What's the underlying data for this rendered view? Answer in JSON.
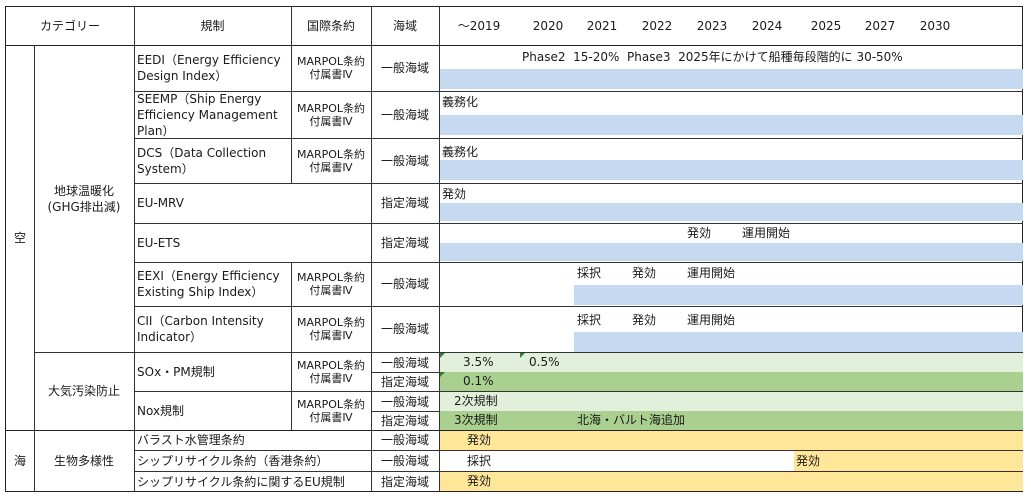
{
  "header": {
    "category": "カテゴリー",
    "regulation": "規制",
    "treaty": "国際条約",
    "sea_area": "海域",
    "years": [
      "～2019",
      "2020",
      "2021",
      "2022",
      "2023",
      "2024",
      "2025",
      "2027",
      "2030"
    ]
  },
  "categories": {
    "sky": "空",
    "sea": "海",
    "ghg": "地球温暖化\n(GHG排出減)",
    "air_pollution": "大気汚染防止",
    "biodiversity": "生物多様性"
  },
  "rows": [
    {
      "regulation": "EEDI（Energy Efficiency\nDesign Index）",
      "treaty": "MARPOL条約\n付属書Ⅳ",
      "area": "一般海域",
      "timeline": "Phase2  15-20%  Phase3  2025年にかけて船種毎段階的に 30-50%"
    },
    {
      "regulation": "SEEMP（Ship Energy\nEfficiency Management\nPlan）",
      "treaty": "MARPOL条約\n付属書Ⅳ",
      "area": "一般海域",
      "timeline": "義務化"
    },
    {
      "regulation": "DCS（Data Collection\nSystem）",
      "treaty": "MARPOL条約\n付属書Ⅳ",
      "area": "一般海域",
      "timeline": "義務化"
    },
    {
      "regulation": "EU-MRV",
      "treaty": "",
      "area": "指定海域",
      "timeline": "発効"
    },
    {
      "regulation": "EU-ETS",
      "treaty": "",
      "area": "指定海域",
      "timeline_a": "発効",
      "timeline_b": "運用開始"
    },
    {
      "regulation": "EEXI（Energy Efficiency\nExisting Ship Index）",
      "treaty": "MARPOL条約\n付属書Ⅳ",
      "area": "一般海域",
      "timeline_a": "採択",
      "timeline_b": "発効",
      "timeline_c": "運用開始"
    },
    {
      "regulation": "CII（Carbon Intensity\nIndicator）",
      "treaty": "MARPOL条約\n付属書Ⅳ",
      "area": "一般海域",
      "timeline_a": "採択",
      "timeline_b": "発効",
      "timeline_c": "運用開始"
    },
    {
      "regulation": "SOx・PM規制",
      "treaty": "MARPOL条約\n付属書Ⅳ",
      "area_general": "一般海域",
      "area_designated": "指定海域",
      "general_a": "3.5%",
      "general_b": "0.5%",
      "designated": "0.1%"
    },
    {
      "regulation": "Nox規制",
      "treaty": "MARPOL条約\n付属書Ⅳ",
      "area_general": "一般海域",
      "area_designated": "指定海域",
      "general": "2次規制",
      "designated_a": "3次規制",
      "designated_b": "北海・バルト海追加"
    },
    {
      "regulation": "バラスト水管理条約",
      "area": "一般海域",
      "timeline": "発効"
    },
    {
      "regulation": "シップリサイクル条約（香港条約）",
      "area": "一般海域",
      "timeline_a": "採択",
      "timeline_b": "発効"
    },
    {
      "regulation": "シップリサイクル条約に関するEU規制",
      "area": "指定海域",
      "timeline": "発効"
    }
  ],
  "colors": {
    "blue_bar": "#c5d9f1",
    "green_light": "#e2efda",
    "green_dark": "#a9d08e",
    "orange_bar": "#ffe699",
    "marker": "#2e7d32"
  }
}
